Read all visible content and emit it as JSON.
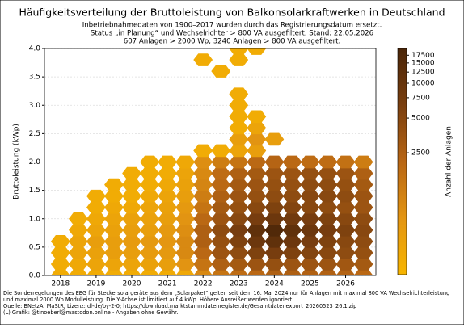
{
  "chart_data": {
    "type": "heatmap",
    "title": "Häufigkeitsverteilung der Bruttoleistung von Balkonsolarkraftwerken in Deutschland",
    "subtitle": [
      "Inbetriebnahmedaten von 1900–2017 wurden durch das Registrierungsdatum ersetzt.",
      "Status „in Planung“ und Wechselrichter > 800 VA ausgefiltert, Stand: 22.05.2026",
      "607 Anlagen > 2000 Wp, 3240 Anlagen > 800 VA ausgefiltert."
    ],
    "y_label": "Bruttoleistung (kWp)",
    "colorbar_label": "Anzahl der Anlagen",
    "footnote": [
      "Die Sonderregelungen des EEG für Steckersolargeräte aus dem „Solarpaket“ gelten seit dem 16. Mai 2024 nur für Anlagen mit maximal 800 VA Wechselrichterleistung",
      "und maximal 2000 Wp Modulleistung. Die Y-Achse ist limitiert auf 4 kWp. Höhere Ausreißer werden ignoriert.",
      "Quelle: BNetzA, MaStR, Lizenz: dl-de/by-2-0; https://download.marktstammdatenregister.de/Gesamtdatenexport_20260523_26.1.zip",
      "(L) Grafik: @tinoeberl@mastodon.online - Angaben ohne Gewähr."
    ],
    "x": [
      2018,
      2018.5,
      2019,
      2019.5,
      2020,
      2020.5,
      2021,
      2021.5,
      2022,
      2022.5,
      2023,
      2023.5,
      2024,
      2024.5,
      2025,
      2025.5,
      2026,
      2026.5
    ],
    "y": [
      0,
      0.2,
      0.4,
      0.6,
      0.8,
      1.0,
      1.2,
      1.4,
      1.6,
      1.8,
      2.0,
      2.2,
      2.4,
      2.6,
      2.8,
      3.0,
      3.2,
      3.4,
      3.6,
      3.8,
      4.0
    ],
    "counts": [
      [
        300,
        300,
        300,
        300,
        300,
        300,
        300,
        350,
        900,
        1500,
        1800,
        2000,
        2500,
        2500,
        2400,
        2400,
        2300,
        2000
      ],
      [
        300,
        350,
        400,
        400,
        400,
        450,
        500,
        700,
        1500,
        2500,
        3000,
        3500,
        4000,
        3500,
        3500,
        3500,
        3200,
        3000
      ],
      [
        300,
        400,
        450,
        500,
        500,
        550,
        600,
        900,
        2000,
        3500,
        4500,
        6000,
        7000,
        6000,
        5500,
        5000,
        4500,
        4000
      ],
      [
        300,
        400,
        500,
        500,
        550,
        600,
        650,
        900,
        2500,
        4000,
        6000,
        9000,
        12000,
        9000,
        7000,
        6000,
        5000,
        4500
      ],
      [
        null,
        350,
        400,
        450,
        500,
        500,
        600,
        800,
        2500,
        4500,
        7000,
        12000,
        17000,
        12000,
        9000,
        7000,
        6000,
        5000
      ],
      [
        null,
        300,
        350,
        400,
        450,
        450,
        500,
        700,
        2000,
        3500,
        5000,
        7000,
        9000,
        8000,
        7000,
        6000,
        5000,
        4500
      ],
      [
        null,
        null,
        300,
        350,
        350,
        400,
        450,
        600,
        1500,
        3000,
        4000,
        5000,
        6000,
        5500,
        5000,
        4500,
        4000,
        3500
      ],
      [
        null,
        null,
        300,
        300,
        300,
        350,
        400,
        500,
        1200,
        2500,
        3500,
        4000,
        4500,
        4500,
        5000,
        5000,
        4500,
        3500
      ],
      [
        null,
        null,
        null,
        300,
        300,
        300,
        350,
        450,
        1000,
        2000,
        3000,
        3500,
        4000,
        4000,
        4500,
        4500,
        4000,
        3000
      ],
      [
        null,
        null,
        null,
        null,
        300,
        300,
        300,
        400,
        900,
        1800,
        2500,
        3000,
        3500,
        3500,
        4000,
        4000,
        3500,
        2500
      ],
      [
        null,
        null,
        null,
        null,
        null,
        300,
        300,
        350,
        800,
        1200,
        1500,
        2000,
        2200,
        2000,
        1800,
        1800,
        1600,
        1200
      ],
      [
        null,
        null,
        null,
        null,
        null,
        null,
        null,
        null,
        300,
        300,
        400,
        500,
        null,
        null,
        null,
        null,
        null,
        null
      ],
      [
        null,
        null,
        null,
        null,
        null,
        null,
        null,
        null,
        null,
        null,
        500,
        700,
        500,
        null,
        null,
        null,
        null,
        null
      ],
      [
        null,
        null,
        null,
        null,
        null,
        null,
        null,
        null,
        null,
        null,
        300,
        400,
        null,
        null,
        null,
        null,
        null,
        null
      ],
      [
        null,
        null,
        null,
        null,
        null,
        null,
        null,
        null,
        null,
        null,
        300,
        300,
        null,
        null,
        null,
        null,
        null,
        null
      ],
      [
        null,
        null,
        null,
        null,
        null,
        null,
        null,
        null,
        null,
        null,
        300,
        null,
        null,
        null,
        null,
        null,
        null,
        null
      ],
      [
        null,
        null,
        null,
        null,
        null,
        null,
        null,
        null,
        null,
        null,
        300,
        null,
        null,
        null,
        null,
        null,
        null,
        null
      ],
      [
        null,
        null,
        null,
        null,
        null,
        null,
        null,
        null,
        null,
        null,
        null,
        null,
        null,
        null,
        null,
        null,
        null,
        null
      ],
      [
        null,
        null,
        null,
        null,
        null,
        null,
        null,
        null,
        null,
        300,
        null,
        null,
        null,
        null,
        null,
        null,
        null,
        null
      ],
      [
        null,
        null,
        null,
        null,
        null,
        null,
        null,
        null,
        300,
        null,
        300,
        null,
        null,
        null,
        null,
        null,
        null,
        null
      ],
      [
        null,
        null,
        null,
        null,
        null,
        null,
        null,
        null,
        null,
        null,
        300,
        300,
        null,
        null,
        null,
        null,
        null,
        null
      ]
    ],
    "xlim": [
      2017.55,
      2026.85
    ],
    "ylim": [
      0,
      4
    ],
    "xticks": [
      2018,
      2019,
      2020,
      2021,
      2022,
      2023,
      2024,
      2025,
      2026
    ],
    "yticks": [
      {
        "value": 0,
        "label": "0.0"
      },
      {
        "value": 0.5,
        "label": "0.5"
      },
      {
        "value": 1,
        "label": "1.0"
      },
      {
        "value": 1.5,
        "label": "1.5"
      },
      {
        "value": 2,
        "label": "2.0"
      },
      {
        "value": 2.5,
        "label": "2.5"
      },
      {
        "value": 3,
        "label": "3.0"
      },
      {
        "value": 3.5,
        "label": "3.5"
      },
      {
        "value": 4,
        "label": "4.0"
      }
    ],
    "grid": true,
    "color_scale": "log",
    "clim": [
      220,
      20000
    ],
    "colormap": [
      "#f7b500",
      "#e39512",
      "#b86614",
      "#7a3f0f",
      "#4a2508"
    ],
    "cticks": [
      2500,
      5000,
      7500,
      10000,
      12500,
      15000,
      17500
    ]
  }
}
